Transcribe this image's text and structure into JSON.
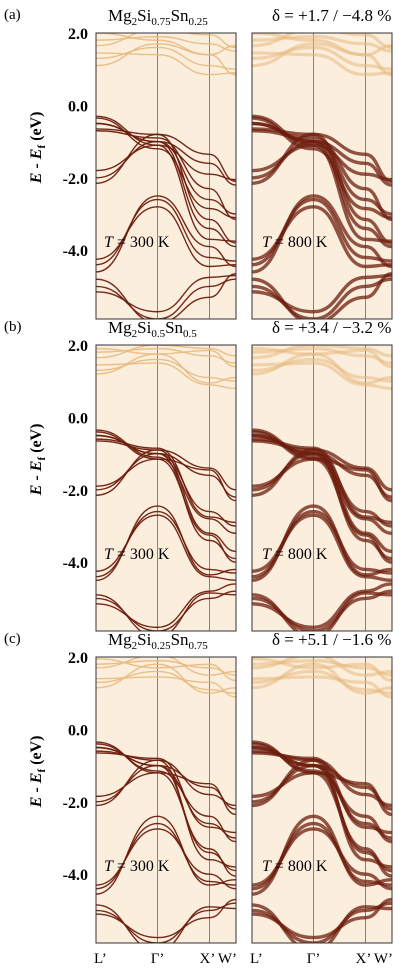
{
  "figure": {
    "ylabel": "E - E",
    "ylabel_sub": "f",
    "ylabel_unit": " (eV)",
    "kpoints": [
      "L’",
      "Γ’",
      "X’",
      "W’"
    ],
    "yticks": [
      "2.0",
      "0.0",
      "-2.0",
      "-4.0"
    ],
    "temperature_symbol": "T",
    "temperatures": [
      "= 300 K",
      "= 800 K"
    ],
    "colors": {
      "background": "#fbeedd",
      "band_dark": "#6e1d0e",
      "band_light": "#e8b97d"
    }
  },
  "panels": [
    {
      "label": "(a)",
      "formula": {
        "a": "Mg",
        "a_sub": "2",
        "b": "Si",
        "b_sub": "0.75",
        "c": "Sn",
        "c_sub": "0.25"
      },
      "delta": "δ  = +1.7 / −4.8 %"
    },
    {
      "label": "(b)",
      "formula": {
        "a": "Mg",
        "a_sub": "2",
        "b": "Si",
        "b_sub": "0.5",
        "c": "Sn",
        "c_sub": "0.5"
      },
      "delta": "δ  = +3.4 / −3.2 %"
    },
    {
      "label": "(c)",
      "formula": {
        "a": "Mg",
        "a_sub": "2",
        "b": "Si",
        "b_sub": "0.25",
        "c": "Sn",
        "c_sub": "0.75"
      },
      "delta": "δ  = +5.1 / −1.6 %"
    }
  ],
  "chart_data": {
    "type": "line",
    "x": [
      "L’",
      "Γ’",
      "X’",
      "W’"
    ],
    "ylabel": "E - Ef (eV)",
    "ylim": [
      -5.9,
      2.0
    ],
    "yticks": [
      2.0,
      0.0,
      -2.0,
      -4.0
    ],
    "series": [
      {
        "values": [
          -5.0,
          -5.9,
          -5.0,
          -4.8
        ]
      },
      {
        "values": [
          -4.4,
          -2.6,
          -4.2,
          -4.3
        ]
      },
      {
        "values": [
          -2.0,
          -1.0,
          -3.4,
          -3.9
        ]
      },
      {
        "values": [
          -0.5,
          -1.0,
          -2.6,
          -3.0
        ]
      },
      {
        "values": [
          -0.5,
          -1.0,
          -1.6,
          -2.2
        ]
      },
      {
        "values": [
          1.3,
          1.6,
          1.1,
          1.0
        ]
      },
      {
        "values": [
          1.8,
          1.9,
          1.7,
          1.5
        ]
      }
    ]
  }
}
